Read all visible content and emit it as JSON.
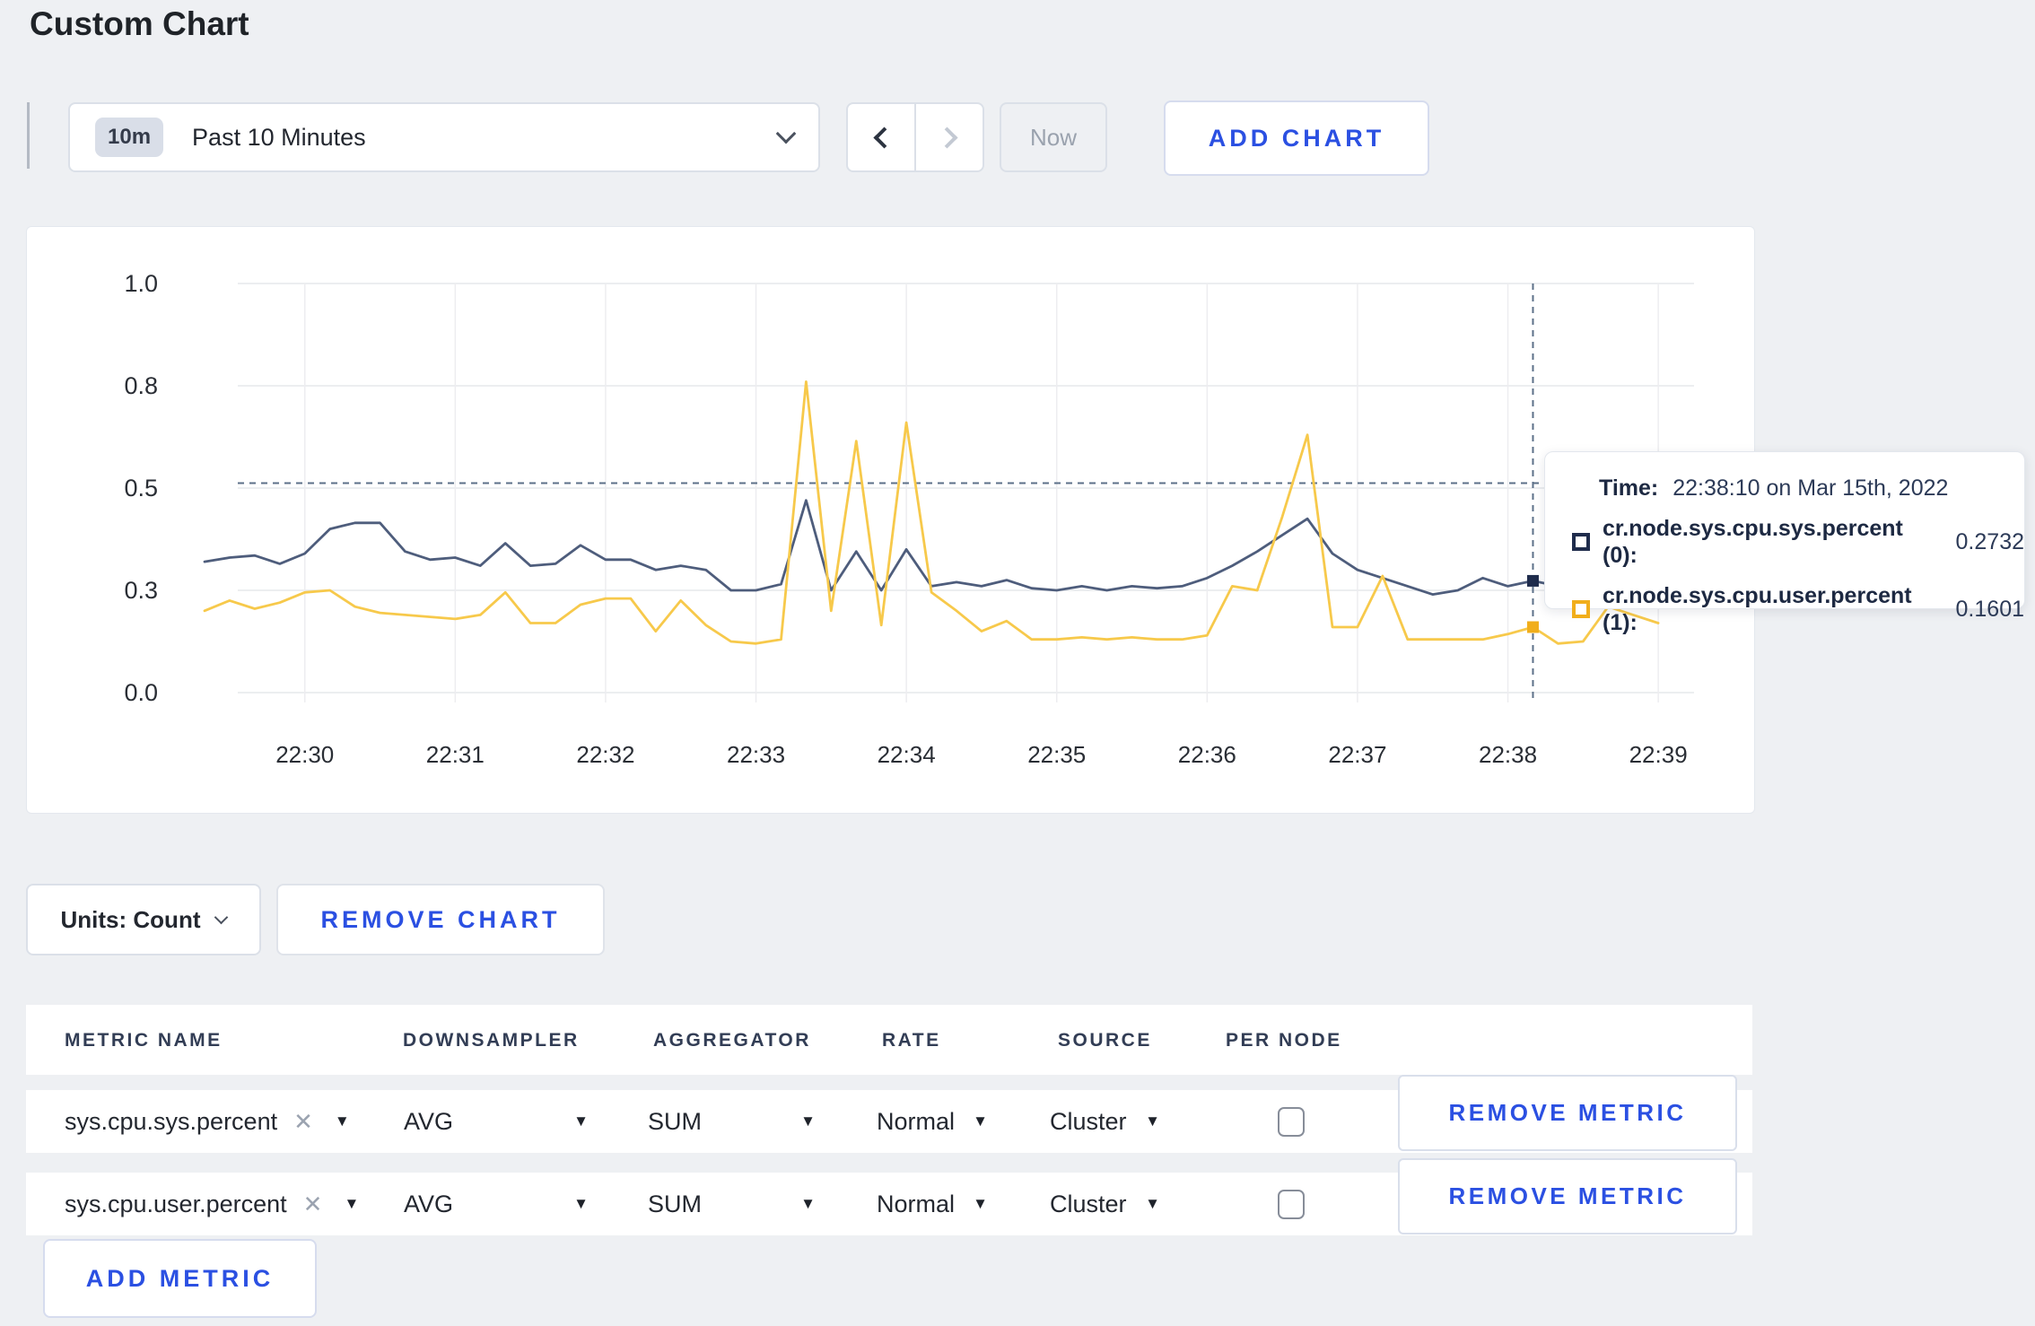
{
  "page": {
    "title": "Custom Chart",
    "background": "#eef0f3",
    "accent_blue": "#2b50e2"
  },
  "toolbar": {
    "range_badge": "10m",
    "range_label": "Past 10 Minutes",
    "now_label": "Now",
    "add_chart_label": "ADD CHART"
  },
  "icons": {
    "close": "✕",
    "caret_down": "▼"
  },
  "chart_data": {
    "type": "line",
    "title": "",
    "xlabel": "",
    "ylabel": "",
    "ylim": [
      0,
      1
    ],
    "grid": true,
    "legend_position": "tooltip-overlay",
    "yticks": {
      "values": [
        0,
        0.25,
        0.5,
        0.75,
        1.0
      ],
      "labels": [
        "0.0",
        "0.3",
        "0.5",
        "0.8",
        "1.0"
      ]
    },
    "xticks": [
      "22:30",
      "22:31",
      "22:32",
      "22:33",
      "22:34",
      "22:35",
      "22:36",
      "22:37",
      "22:38",
      "22:39"
    ],
    "x": [
      "22:29:20",
      "22:29:30",
      "22:29:40",
      "22:29:50",
      "22:30:00",
      "22:30:10",
      "22:30:20",
      "22:30:30",
      "22:30:40",
      "22:30:50",
      "22:31:00",
      "22:31:10",
      "22:31:20",
      "22:31:30",
      "22:31:40",
      "22:31:50",
      "22:32:00",
      "22:32:10",
      "22:32:20",
      "22:32:30",
      "22:32:40",
      "22:32:50",
      "22:33:00",
      "22:33:10",
      "22:33:20",
      "22:33:30",
      "22:33:40",
      "22:33:50",
      "22:34:00",
      "22:34:10",
      "22:34:20",
      "22:34:30",
      "22:34:40",
      "22:34:50",
      "22:35:00",
      "22:35:10",
      "22:35:20",
      "22:35:30",
      "22:35:40",
      "22:35:50",
      "22:36:00",
      "22:36:10",
      "22:36:20",
      "22:36:30",
      "22:36:40",
      "22:36:50",
      "22:37:00",
      "22:37:10",
      "22:37:20",
      "22:37:30",
      "22:37:40",
      "22:37:50",
      "22:38:00",
      "22:38:10",
      "22:38:20",
      "22:38:30",
      "22:38:40",
      "22:38:50",
      "22:39:00"
    ],
    "series": [
      {
        "name": "cr.node.sys.cpu.sys.percent (0)",
        "color": "#4e5d7c",
        "marker_color": "#1f2c4c",
        "values": [
          0.32,
          0.33,
          0.335,
          0.315,
          0.34,
          0.4,
          0.415,
          0.415,
          0.345,
          0.325,
          0.33,
          0.31,
          0.365,
          0.31,
          0.315,
          0.36,
          0.325,
          0.325,
          0.3,
          0.31,
          0.3,
          0.25,
          0.25,
          0.265,
          0.47,
          0.25,
          0.345,
          0.25,
          0.35,
          0.26,
          0.27,
          0.26,
          0.275,
          0.255,
          0.25,
          0.26,
          0.25,
          0.26,
          0.255,
          0.26,
          0.28,
          0.31,
          0.345,
          0.385,
          0.425,
          0.34,
          0.3,
          0.28,
          0.26,
          0.24,
          0.25,
          0.28,
          0.26,
          0.2732,
          0.26,
          0.27,
          0.28,
          0.275,
          0.28
        ]
      },
      {
        "name": "cr.node.sys.cpu.user.percent (1)",
        "color": "#f7c94b",
        "marker_color": "#f1ae1b",
        "values": [
          0.2,
          0.225,
          0.205,
          0.22,
          0.245,
          0.25,
          0.21,
          0.195,
          0.19,
          0.185,
          0.18,
          0.19,
          0.245,
          0.17,
          0.17,
          0.215,
          0.23,
          0.23,
          0.15,
          0.225,
          0.165,
          0.125,
          0.12,
          0.13,
          0.76,
          0.2,
          0.615,
          0.165,
          0.66,
          0.245,
          0.2,
          0.15,
          0.175,
          0.13,
          0.13,
          0.135,
          0.13,
          0.135,
          0.13,
          0.13,
          0.14,
          0.26,
          0.25,
          0.43,
          0.63,
          0.16,
          0.16,
          0.285,
          0.13,
          0.13,
          0.13,
          0.13,
          0.143,
          0.1601,
          0.12,
          0.125,
          0.21,
          0.19,
          0.17
        ]
      }
    ],
    "crosshair": {
      "time": "22:38:10",
      "hline_value": 0.512
    }
  },
  "tooltip": {
    "time_label": "Time:",
    "time_value": "22:38:10 on Mar 15th, 2022",
    "rows": [
      {
        "name": "cr.node.sys.cpu.sys.percent (0):",
        "value": "0.2732",
        "color": "#1f2c4c"
      },
      {
        "name": "cr.node.sys.cpu.user.percent (1):",
        "value": "0.1601",
        "color": "#f1ae1b"
      }
    ]
  },
  "units_bar": {
    "units_label": "Units: Count",
    "remove_chart_label": "REMOVE CHART"
  },
  "metrics_table": {
    "headers": [
      "METRIC NAME",
      "DOWNSAMPLER",
      "AGGREGATOR",
      "RATE",
      "SOURCE",
      "PER NODE"
    ],
    "rows": [
      {
        "metric": "sys.cpu.sys.percent",
        "downsampler": "AVG",
        "aggregator": "SUM",
        "rate": "Normal",
        "source": "Cluster",
        "per_node_checked": false,
        "remove_label": "REMOVE METRIC"
      },
      {
        "metric": "sys.cpu.user.percent",
        "downsampler": "AVG",
        "aggregator": "SUM",
        "rate": "Normal",
        "source": "Cluster",
        "per_node_checked": false,
        "remove_label": "REMOVE METRIC"
      }
    ],
    "add_metric_label": "ADD METRIC"
  }
}
